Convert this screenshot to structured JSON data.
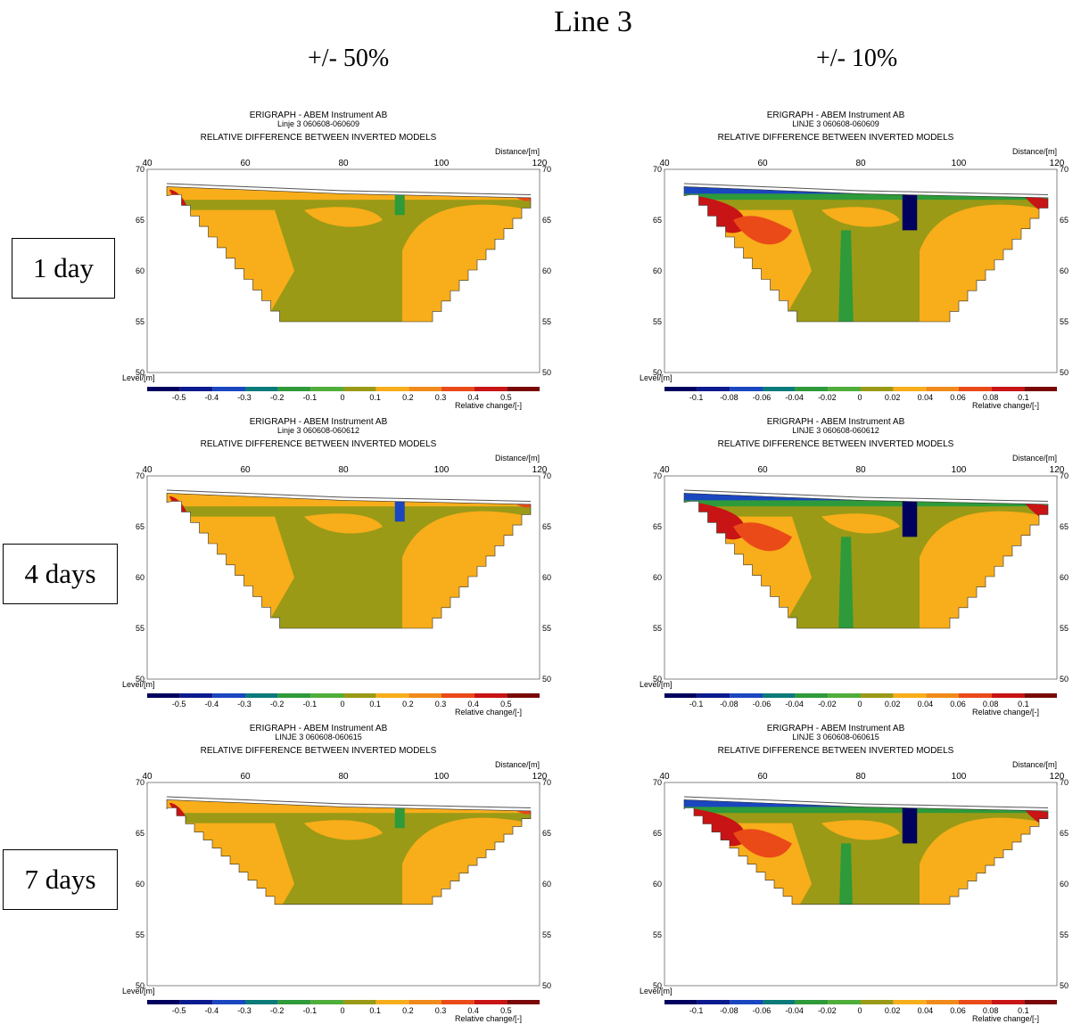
{
  "title": "Line 3",
  "column_headers": [
    "+/- 50%",
    "+/- 10%"
  ],
  "row_labels": [
    "1 day",
    "4 days",
    "7 days"
  ],
  "colors": {
    "vdark_blue": "#00005e",
    "dark_blue": "#0a1a8e",
    "blue": "#1a46c0",
    "teal": "#0a7a7a",
    "green": "#2e9a3a",
    "lgreen": "#4fae3a",
    "olive": "#9a9a16",
    "gold": "#f8ad1a",
    "orange": "#f08a1a",
    "red_orange": "#ea4a18",
    "red": "#c81414",
    "dark_red": "#7a0808"
  },
  "panels": [
    {
      "id": "p1",
      "header": "ERIGRAPH - ABEM Instrument AB",
      "subheader": "Linje 3 060608-060609",
      "subtitle": "RELATIVE DIFFERENCE BETWEEN INVERTED MODELS",
      "xlabel": "Distance/[m]",
      "ylabel": "Level/[m]",
      "cbar_label": "Relative change/[-]",
      "x_ticks": [
        "40",
        "60",
        "80",
        "100",
        "120"
      ],
      "y_ticks": [
        "70",
        "65",
        "60",
        "55",
        "50"
      ],
      "cbar_ticks": [
        "-0.5",
        "-0.4",
        "-0.3",
        "-0.2",
        "-0.1",
        "0",
        "0.1",
        "0.2",
        "0.3",
        "0.4",
        "0.5"
      ]
    },
    {
      "id": "p2",
      "header": "ERIGRAPH - ABEM Instrument AB",
      "subheader": "LINJE 3 060608-060609",
      "subtitle": "RELATIVE DIFFERENCE BETWEEN INVERTED MODELS",
      "xlabel": "Distance/[m]",
      "ylabel": "Level/[m]",
      "cbar_label": "Relative change/[-]",
      "x_ticks": [
        "40",
        "60",
        "80",
        "100",
        "120"
      ],
      "y_ticks": [
        "70",
        "65",
        "60",
        "55",
        "50"
      ],
      "cbar_ticks": [
        "-0.1",
        "-0.08",
        "-0.06",
        "-0.04",
        "-0.02",
        "0",
        "0.02",
        "0.04",
        "0.06",
        "0.08",
        "0.1"
      ]
    },
    {
      "id": "p3",
      "header": "ERIGRAPH - ABEM Instrument AB",
      "subheader": "Linje 3 060608-060612",
      "subtitle": "RELATIVE DIFFERENCE BETWEEN INVERTED MODELS",
      "xlabel": "Distance/[m]",
      "ylabel": "Level/[m]",
      "cbar_label": "Relative change/[-]",
      "x_ticks": [
        "40",
        "60",
        "80",
        "100",
        "120"
      ],
      "y_ticks": [
        "70",
        "65",
        "60",
        "55",
        "50"
      ],
      "cbar_ticks": [
        "-0.5",
        "-0.4",
        "-0.3",
        "-0.2",
        "-0.1",
        "0",
        "0.1",
        "0.2",
        "0.3",
        "0.4",
        "0.5"
      ]
    },
    {
      "id": "p4",
      "header": "ERIGRAPH - ABEM Instrument AB",
      "subheader": "LINJE 3 060608-060612",
      "subtitle": "RELATIVE DIFFERENCE BETWEEN INVERTED MODELS",
      "xlabel": "Distance/[m]",
      "ylabel": "Level/[m]",
      "cbar_label": "Relative change/[-]",
      "x_ticks": [
        "40",
        "60",
        "80",
        "100",
        "120"
      ],
      "y_ticks": [
        "70",
        "65",
        "60",
        "55",
        "50"
      ],
      "cbar_ticks": [
        "-0.1",
        "-0.08",
        "-0.06",
        "-0.04",
        "-0.02",
        "0",
        "0.02",
        "0.04",
        "0.06",
        "0.08",
        "0.1"
      ]
    },
    {
      "id": "p5",
      "header": "ERIGRAPH - ABEM Instrument AB",
      "subheader": "LINJE 3 060608-060615",
      "subtitle": "RELATIVE DIFFERENCE BETWEEN INVERTED MODELS",
      "xlabel": "Distance/[m]",
      "ylabel": "Level/[m]",
      "cbar_label": "Relative change/[-]",
      "x_ticks": [
        "40",
        "60",
        "80",
        "100",
        "120"
      ],
      "y_ticks": [
        "70",
        "65",
        "60",
        "55",
        "50"
      ],
      "cbar_ticks": [
        "-0.5",
        "-0.4",
        "-0.3",
        "-0.2",
        "-0.1",
        "0",
        "0.1",
        "0.2",
        "0.3",
        "0.4",
        "0.5"
      ]
    },
    {
      "id": "p6",
      "header": "ERIGRAPH - ABEM Instrument AB",
      "subheader": "LINJE 3 060608-060615",
      "subtitle": "RELATIVE DIFFERENCE BETWEEN INVERTED MODELS",
      "xlabel": "Distance/[m]",
      "ylabel": "Level/[m]",
      "cbar_label": "Relative change/[-]",
      "x_ticks": [
        "40",
        "60",
        "80",
        "100",
        "120"
      ],
      "y_ticks": [
        "70",
        "65",
        "60",
        "55",
        "50"
      ],
      "cbar_ticks": [
        "-0.1",
        "-0.08",
        "-0.06",
        "-0.04",
        "-0.02",
        "0",
        "0.02",
        "0.04",
        "0.06",
        "0.08",
        "0.1"
      ]
    }
  ],
  "chart_data": [
    {
      "type": "heatmap",
      "panel": "p1",
      "x_range": [
        40,
        120
      ],
      "y_range": [
        50,
        70
      ],
      "profile_depth_min": 55,
      "colorbar_range": [
        -0.5,
        0.5
      ],
      "surface_level": [
        {
          "x": 44,
          "y": 68.3
        },
        {
          "x": 80,
          "y": 67.6
        },
        {
          "x": 120,
          "y": 67.2
        }
      ],
      "dominant": "0.1–0 (gold/olive)",
      "anomalies": [
        {
          "x": 44,
          "y": 66.5,
          "value": 0.4
        },
        {
          "x": 92,
          "y": 66.5,
          "value": -0.2
        }
      ]
    },
    {
      "type": "heatmap",
      "panel": "p2",
      "x_range": [
        40,
        120
      ],
      "y_range": [
        50,
        70
      ],
      "profile_depth_min": 55,
      "colorbar_range": [
        -0.1,
        0.1
      ],
      "dominant": "0–0.02",
      "anomalies": [
        {
          "x": 47,
          "y": 65.5,
          "value": 0.09
        },
        {
          "x": 90,
          "y": 65.5,
          "value": -0.1
        },
        {
          "x": 76,
          "y": 59,
          "value": -0.04
        }
      ]
    },
    {
      "type": "heatmap",
      "panel": "p3",
      "x_range": [
        40,
        120
      ],
      "y_range": [
        50,
        70
      ],
      "profile_depth_min": 55,
      "colorbar_range": [
        -0.5,
        0.5
      ],
      "dominant": "0 to 0.1",
      "anomalies": [
        {
          "x": 44,
          "y": 67,
          "value": 0.4
        },
        {
          "x": 93,
          "y": 66,
          "value": -0.3
        }
      ]
    },
    {
      "type": "heatmap",
      "panel": "p4",
      "x_range": [
        40,
        120
      ],
      "y_range": [
        50,
        70
      ],
      "profile_depth_min": 55,
      "colorbar_range": [
        -0.1,
        0.1
      ],
      "dominant": "0 to 0.02",
      "anomalies": [
        {
          "x": 47,
          "y": 66,
          "value": -0.1
        },
        {
          "x": 55,
          "y": 64,
          "value": 0.08
        },
        {
          "x": 80,
          "y": 58,
          "value": -0.04
        }
      ]
    },
    {
      "type": "heatmap",
      "panel": "p5",
      "x_range": [
        40,
        120
      ],
      "y_range": [
        50,
        70
      ],
      "profile_depth_min": 58,
      "colorbar_range": [
        -0.5,
        0.5
      ],
      "dominant": "0 to 0.1",
      "anomalies": [
        {
          "x": 44,
          "y": 67,
          "value": 0.3
        },
        {
          "x": 117,
          "y": 67,
          "value": 0.3
        }
      ]
    },
    {
      "type": "heatmap",
      "panel": "p6",
      "x_range": [
        40,
        120
      ],
      "y_range": [
        50,
        70
      ],
      "profile_depth_min": 58,
      "colorbar_range": [
        -0.1,
        0.1
      ],
      "dominant": "0 to 0.02",
      "anomalies": [
        {
          "x": 55,
          "y": 64,
          "value": 0.1
        },
        {
          "x": 63,
          "y": 66,
          "value": 0.1
        },
        {
          "x": 90,
          "y": 66,
          "value": -0.1
        }
      ]
    }
  ]
}
